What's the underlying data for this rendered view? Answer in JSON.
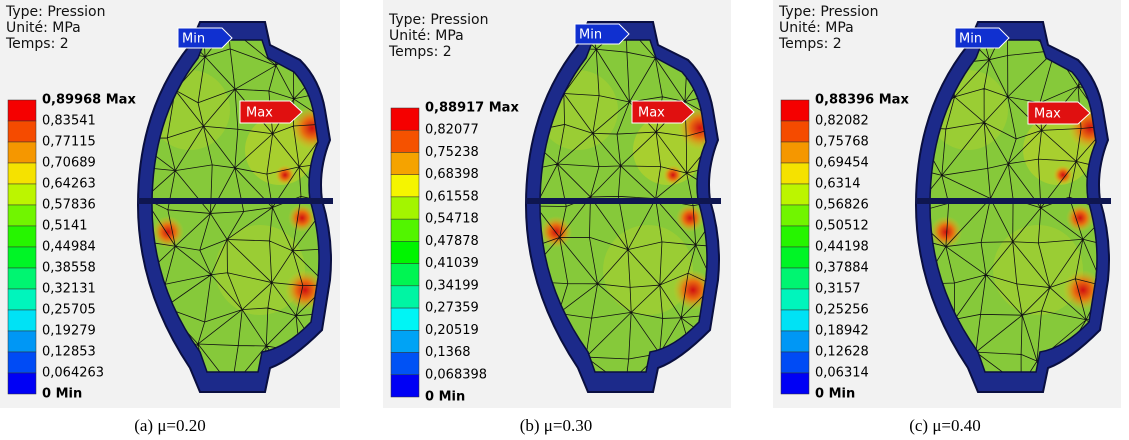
{
  "panels": [
    {
      "header": [
        "Type: Pression",
        "Unité: MPa",
        "Temps: 2"
      ],
      "min_tag": "Min",
      "max_tag": "Max",
      "legend": [
        "0,89968 Max",
        "0,83541",
        "0,77115",
        "0,70689",
        "0,64263",
        "0,57836",
        "0,5141",
        "0,44984",
        "0,38558",
        "0,32131",
        "0,25705",
        "0,19279",
        "0,12853",
        "0,064263",
        "0 Min"
      ],
      "caption": "(a) μ=0.20"
    },
    {
      "header": [
        "Type: Pression",
        "Unité: MPa",
        "Temps: 2"
      ],
      "min_tag": "Min",
      "max_tag": "Max",
      "legend": [
        "0,88917 Max",
        "0,82077",
        "0,75238",
        "0,68398",
        "0,61558",
        "0,54718",
        "0,47878",
        "0,41039",
        "0,34199",
        "0,27359",
        "0,20519",
        "0,1368",
        "0,068398",
        "0 Min"
      ],
      "caption": "(b) μ=0.30"
    },
    {
      "header": [
        "Type: Pression",
        "Unité: MPa",
        "Temps: 2"
      ],
      "min_tag": "Min",
      "max_tag": "Max",
      "legend": [
        "0,88396 Max",
        "0,82082",
        "0,75768",
        "0,69454",
        "0,6314",
        "0,56826",
        "0,50512",
        "0,44198",
        "0,37884",
        "0,3157",
        "0,25256",
        "0,18942",
        "0,12628",
        "0,06314",
        "0 Min"
      ],
      "caption": "(c) μ=0.40"
    }
  ]
}
